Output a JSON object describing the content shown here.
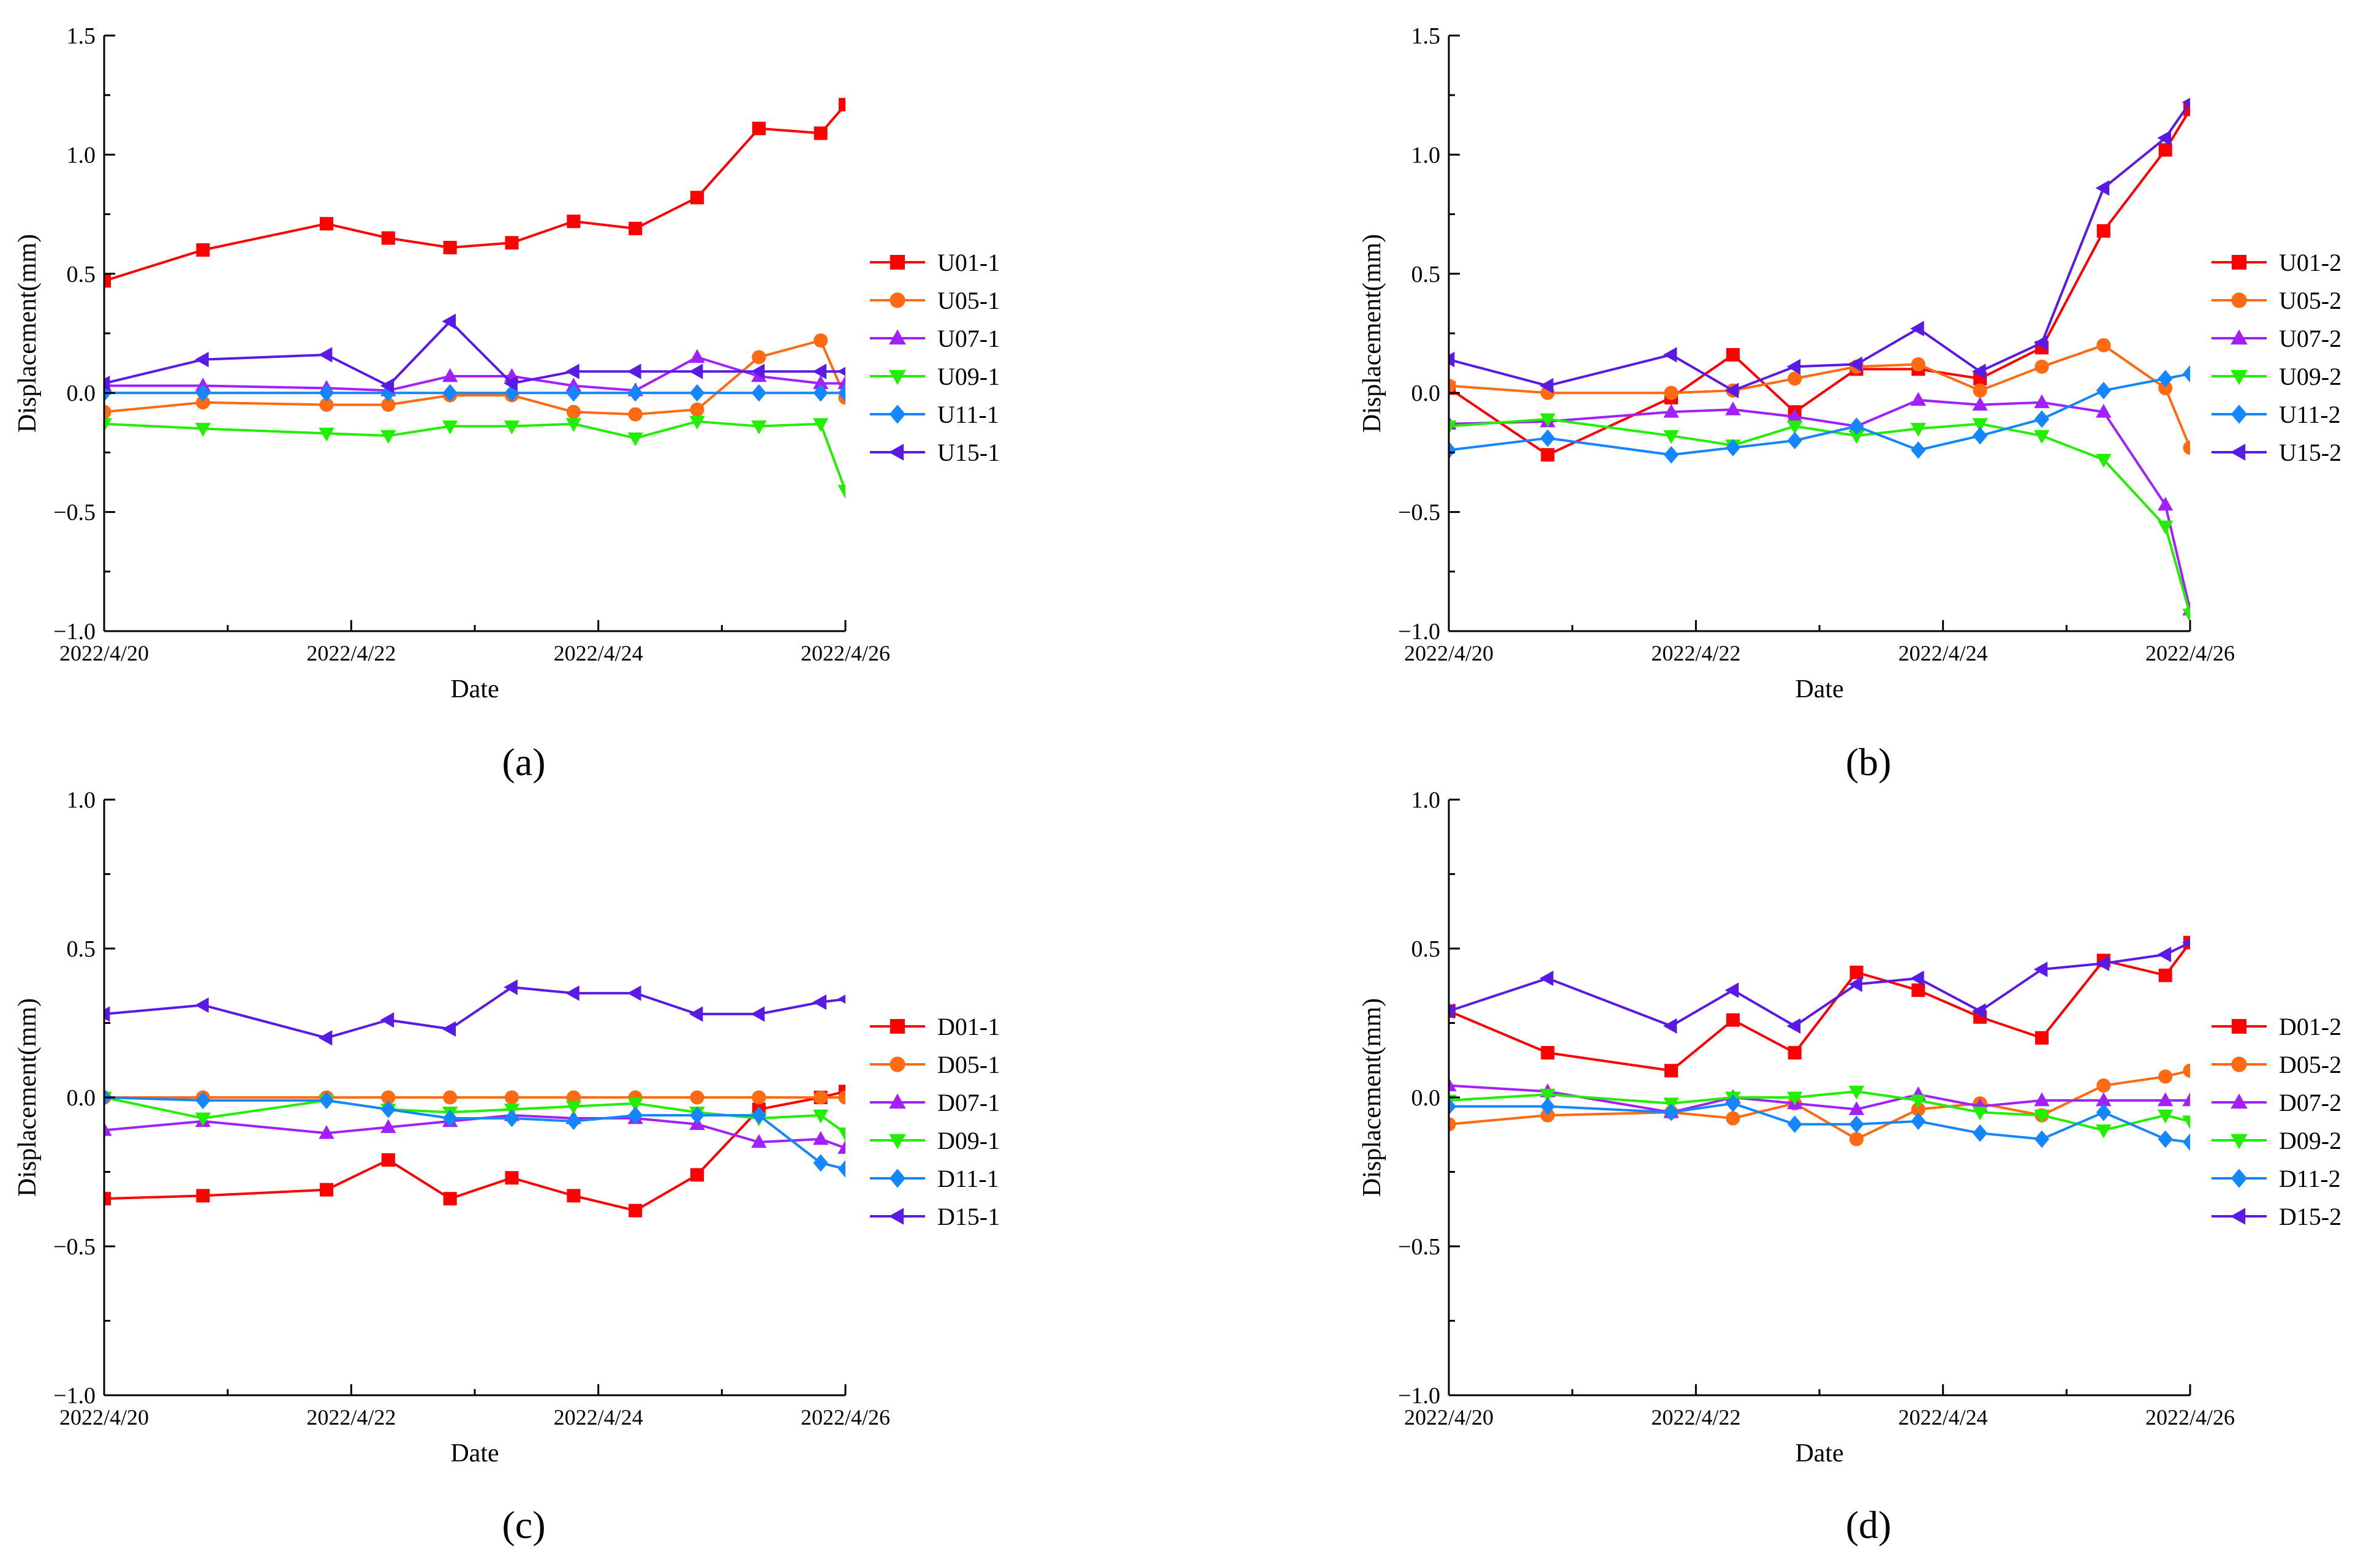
{
  "figure": {
    "panel_labels": [
      "(a)",
      "(b)",
      "(c)",
      "(d)"
    ]
  },
  "chart_data": [
    {
      "type": "line",
      "panel": "(a)",
      "xlabel": "Date",
      "ylabel": "Displacement(mm)",
      "ylim": [
        -1.0,
        1.5
      ],
      "yticks": [
        -1.0,
        -0.5,
        0.0,
        0.5,
        1.0,
        1.5
      ],
      "ytick_labels": [
        "−1.0",
        "−0.5",
        "0.0",
        "0.5",
        "1.0",
        "1.5"
      ],
      "xlim": [
        0,
        6
      ],
      "xticks": [
        0,
        2,
        4,
        6
      ],
      "xtick_labels": [
        "2022/4/20",
        "2022/4/22",
        "2022/4/24",
        "2022/4/26"
      ],
      "x": [
        0,
        0.8,
        1.8,
        2.3,
        2.8,
        3.3,
        3.8,
        4.3,
        4.8,
        5.3,
        5.8,
        6.0
      ],
      "legend_position": "right",
      "series": [
        {
          "name": "U01-1",
          "color": "#ff0000",
          "marker": "square",
          "values": [
            0.47,
            0.6,
            0.71,
            0.65,
            0.61,
            0.63,
            0.72,
            0.69,
            0.82,
            1.11,
            1.09,
            1.21
          ]
        },
        {
          "name": "U05-1",
          "color": "#ff6a13",
          "marker": "circle",
          "values": [
            -0.08,
            -0.04,
            -0.05,
            -0.05,
            -0.01,
            -0.01,
            -0.08,
            -0.09,
            -0.07,
            0.15,
            0.22,
            -0.02
          ]
        },
        {
          "name": "U07-1",
          "color": "#a21fff",
          "marker": "triangle-up",
          "values": [
            0.03,
            0.03,
            0.02,
            0.01,
            0.07,
            0.07,
            0.03,
            0.01,
            0.15,
            0.07,
            0.04,
            0.04
          ]
        },
        {
          "name": "U09-1",
          "color": "#22ee00",
          "marker": "triangle-down",
          "values": [
            -0.13,
            -0.15,
            -0.17,
            -0.18,
            -0.14,
            -0.14,
            -0.13,
            -0.19,
            -0.12,
            -0.14,
            -0.13,
            -0.41
          ]
        },
        {
          "name": "U11-1",
          "color": "#1486ff",
          "marker": "diamond",
          "values": [
            0.0,
            0.0,
            0.0,
            0.0,
            0.0,
            0.0,
            0.0,
            0.0,
            0.0,
            0.0,
            0.0,
            0.0
          ]
        },
        {
          "name": "U15-1",
          "color": "#5a1ae6",
          "marker": "triangle-left",
          "values": [
            0.04,
            0.14,
            0.16,
            0.03,
            0.3,
            0.04,
            0.09,
            0.09,
            0.09,
            0.09,
            0.09,
            0.09
          ]
        }
      ]
    },
    {
      "type": "line",
      "panel": "(b)",
      "xlabel": "Date",
      "ylabel": "Displacement(mm)",
      "ylim": [
        -1.0,
        1.5
      ],
      "yticks": [
        -1.0,
        -0.5,
        0.0,
        0.5,
        1.0,
        1.5
      ],
      "ytick_labels": [
        "−1.0",
        "−0.5",
        "0.0",
        "0.5",
        "1.0",
        "1.5"
      ],
      "xlim": [
        0,
        6
      ],
      "xticks": [
        0,
        2,
        4,
        6
      ],
      "xtick_labels": [
        "2022/4/20",
        "2022/4/22",
        "2022/4/24",
        "2022/4/26"
      ],
      "x": [
        0,
        0.8,
        1.8,
        2.3,
        2.8,
        3.3,
        3.8,
        4.3,
        4.8,
        5.3,
        5.8,
        6.0
      ],
      "legend_position": "right",
      "series": [
        {
          "name": "U01-2",
          "color": "#ff0000",
          "marker": "square",
          "values": [
            0.02,
            -0.26,
            -0.02,
            0.16,
            -0.08,
            0.1,
            0.1,
            0.06,
            0.19,
            0.68,
            1.02,
            1.19
          ]
        },
        {
          "name": "U05-2",
          "color": "#ff6a13",
          "marker": "circle",
          "values": [
            0.03,
            0.0,
            0.0,
            0.01,
            0.06,
            0.11,
            0.12,
            0.01,
            0.11,
            0.2,
            0.02,
            -0.23
          ]
        },
        {
          "name": "U07-2",
          "color": "#a21fff",
          "marker": "triangle-up",
          "values": [
            -0.13,
            -0.12,
            -0.08,
            -0.07,
            -0.1,
            -0.14,
            -0.03,
            -0.05,
            -0.04,
            -0.08,
            -0.47,
            -0.91
          ]
        },
        {
          "name": "U09-2",
          "color": "#22ee00",
          "marker": "triangle-down",
          "values": [
            -0.14,
            -0.11,
            -0.18,
            -0.22,
            -0.14,
            -0.18,
            -0.15,
            -0.13,
            -0.18,
            -0.28,
            -0.56,
            -0.93
          ]
        },
        {
          "name": "U11-2",
          "color": "#1486ff",
          "marker": "diamond",
          "values": [
            -0.24,
            -0.19,
            -0.26,
            -0.23,
            -0.2,
            -0.14,
            -0.24,
            -0.18,
            -0.11,
            0.01,
            0.06,
            0.08
          ]
        },
        {
          "name": "U15-2",
          "color": "#5a1ae6",
          "marker": "triangle-left",
          "values": [
            0.14,
            0.03,
            0.16,
            0.01,
            0.11,
            0.12,
            0.27,
            0.09,
            0.21,
            0.86,
            1.07,
            1.22
          ]
        }
      ]
    },
    {
      "type": "line",
      "panel": "(c)",
      "xlabel": "Date",
      "ylabel": "Displacement(mm)",
      "ylim": [
        -1.0,
        1.0
      ],
      "yticks": [
        -1.0,
        -0.5,
        0.0,
        0.5,
        1.0
      ],
      "ytick_labels": [
        "−1.0",
        "−0.5",
        "0.0",
        "0.5",
        "1.0"
      ],
      "xlim": [
        0,
        6
      ],
      "xticks": [
        0,
        2,
        4,
        6
      ],
      "xtick_labels": [
        "2022/4/20",
        "2022/4/22",
        "2022/4/24",
        "2022/4/26"
      ],
      "x": [
        0,
        0.8,
        1.8,
        2.3,
        2.8,
        3.3,
        3.8,
        4.3,
        4.8,
        5.3,
        5.8,
        6.0
      ],
      "legend_position": "right",
      "series": [
        {
          "name": "D01-1",
          "color": "#ff0000",
          "marker": "square",
          "values": [
            -0.34,
            -0.33,
            -0.31,
            -0.21,
            -0.34,
            -0.27,
            -0.33,
            -0.38,
            -0.26,
            -0.04,
            0.0,
            0.02
          ]
        },
        {
          "name": "D05-1",
          "color": "#ff6a13",
          "marker": "circle",
          "values": [
            0.0,
            0.0,
            0.0,
            0.0,
            0.0,
            0.0,
            0.0,
            0.0,
            0.0,
            0.0,
            0.0,
            0.0
          ]
        },
        {
          "name": "D07-1",
          "color": "#a21fff",
          "marker": "triangle-up",
          "values": [
            -0.11,
            -0.08,
            -0.12,
            -0.1,
            -0.08,
            -0.06,
            -0.07,
            -0.07,
            -0.09,
            -0.15,
            -0.14,
            -0.17
          ]
        },
        {
          "name": "D09-1",
          "color": "#22ee00",
          "marker": "triangle-down",
          "values": [
            0.0,
            -0.07,
            -0.01,
            -0.04,
            -0.05,
            -0.04,
            -0.03,
            -0.02,
            -0.05,
            -0.07,
            -0.06,
            -0.12
          ]
        },
        {
          "name": "D11-1",
          "color": "#1486ff",
          "marker": "diamond",
          "values": [
            0.0,
            -0.01,
            -0.01,
            -0.04,
            -0.07,
            -0.07,
            -0.08,
            -0.06,
            -0.06,
            -0.06,
            -0.22,
            -0.24
          ]
        },
        {
          "name": "D15-1",
          "color": "#5a1ae6",
          "marker": "triangle-left",
          "values": [
            0.28,
            0.31,
            0.2,
            0.26,
            0.23,
            0.37,
            0.35,
            0.35,
            0.28,
            0.28,
            0.32,
            0.33
          ]
        }
      ]
    },
    {
      "type": "line",
      "panel": "(d)",
      "xlabel": "Date",
      "ylabel": "Displacement(mm)",
      "ylim": [
        -1.0,
        1.0
      ],
      "yticks": [
        -1.0,
        -0.5,
        0.0,
        0.5,
        1.0
      ],
      "ytick_labels": [
        "−1.0",
        "−0.5",
        "0.0",
        "0.5",
        "1.0"
      ],
      "xlim": [
        0,
        6
      ],
      "xticks": [
        0,
        2,
        4,
        6
      ],
      "xtick_labels": [
        "2022/4/20",
        "2022/4/22",
        "2022/4/24",
        "2022/4/26"
      ],
      "x": [
        0,
        0.8,
        1.8,
        2.3,
        2.8,
        3.3,
        3.8,
        4.3,
        4.8,
        5.3,
        5.8,
        6.0
      ],
      "legend_position": "right",
      "series": [
        {
          "name": "D01-2",
          "color": "#ff0000",
          "marker": "square",
          "values": [
            0.29,
            0.15,
            0.09,
            0.26,
            0.15,
            0.42,
            0.36,
            0.27,
            0.2,
            0.46,
            0.41,
            0.52
          ]
        },
        {
          "name": "D05-2",
          "color": "#ff6a13",
          "marker": "circle",
          "values": [
            -0.09,
            -0.06,
            -0.05,
            -0.07,
            -0.02,
            -0.14,
            -0.04,
            -0.02,
            -0.06,
            0.04,
            0.07,
            0.09
          ]
        },
        {
          "name": "D07-2",
          "color": "#a21fff",
          "marker": "triangle-up",
          "values": [
            0.04,
            0.02,
            -0.05,
            0.0,
            -0.02,
            -0.04,
            0.01,
            -0.03,
            -0.01,
            -0.01,
            -0.01,
            -0.01
          ]
        },
        {
          "name": "D09-2",
          "color": "#22ee00",
          "marker": "triangle-down",
          "values": [
            -0.01,
            0.01,
            -0.02,
            0.0,
            0.0,
            0.02,
            -0.01,
            -0.05,
            -0.06,
            -0.11,
            -0.06,
            -0.08
          ]
        },
        {
          "name": "D11-2",
          "color": "#1486ff",
          "marker": "diamond",
          "values": [
            -0.03,
            -0.03,
            -0.05,
            -0.02,
            -0.09,
            -0.09,
            -0.08,
            -0.12,
            -0.14,
            -0.05,
            -0.14,
            -0.15
          ]
        },
        {
          "name": "D15-2",
          "color": "#5a1ae6",
          "marker": "triangle-left",
          "values": [
            0.29,
            0.4,
            0.24,
            0.36,
            0.24,
            0.38,
            0.4,
            0.29,
            0.43,
            0.45,
            0.48,
            0.52
          ]
        }
      ]
    }
  ]
}
